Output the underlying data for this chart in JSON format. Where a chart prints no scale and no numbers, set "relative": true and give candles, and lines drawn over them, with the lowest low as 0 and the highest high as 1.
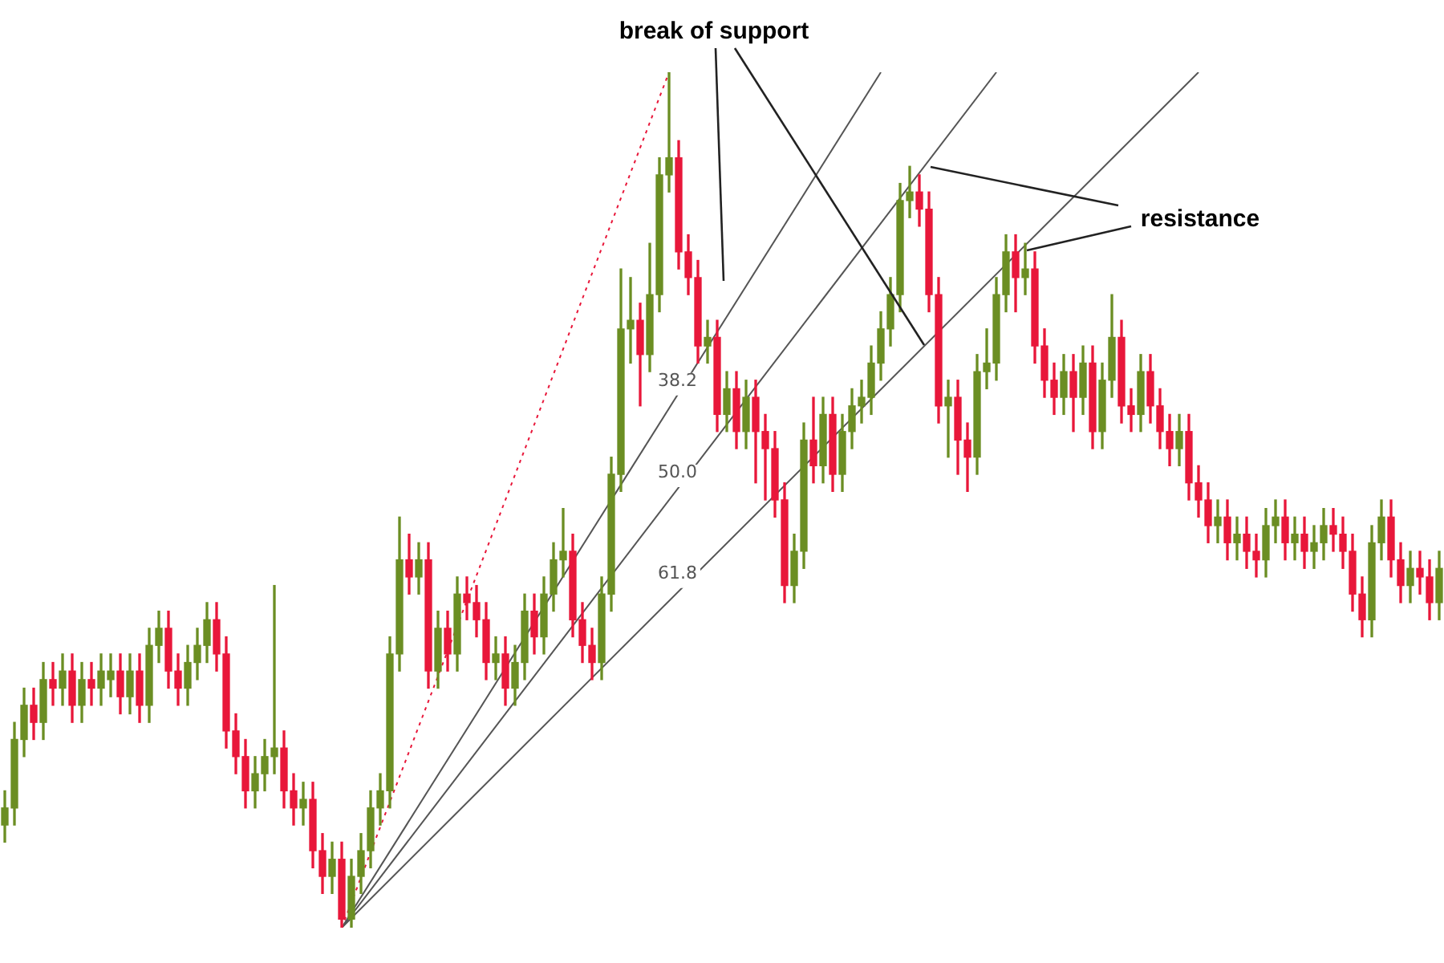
{
  "chart_data": {
    "type": "candlestick",
    "relative": true,
    "legend": false,
    "tick_labels": false,
    "annotations": [
      "break of support",
      "resistance"
    ],
    "categories": [
      null,
      null,
      null,
      null,
      null,
      null,
      null,
      null,
      null,
      null,
      null,
      null,
      null,
      null,
      null,
      null,
      null,
      null,
      null,
      null,
      null,
      null,
      null,
      null,
      null,
      null,
      null,
      null,
      null,
      null,
      null,
      null,
      null,
      null,
      null,
      null,
      null,
      null,
      null,
      null,
      null,
      null,
      null,
      null,
      null,
      null,
      null,
      null,
      null,
      null,
      null,
      null,
      null,
      null,
      null,
      null,
      null,
      null,
      null,
      null,
      null,
      null,
      null,
      null,
      null,
      null,
      null,
      null,
      null,
      null,
      null,
      null,
      null,
      null,
      null,
      null,
      null,
      null,
      null,
      null,
      null,
      null,
      null,
      null,
      null,
      null,
      null,
      null,
      null,
      null,
      null,
      null,
      null,
      null,
      null,
      null,
      null,
      null,
      null,
      null,
      null,
      null,
      null,
      null,
      null,
      null,
      null,
      null,
      null,
      null,
      null,
      null,
      null,
      null,
      null,
      null,
      null,
      null,
      null,
      null,
      null,
      null,
      null,
      null,
      null,
      null,
      null,
      null,
      null,
      null,
      null,
      null,
      null,
      null,
      null,
      null,
      null,
      null,
      null,
      null,
      null,
      null,
      null,
      null,
      null,
      null,
      null,
      null,
      null,
      null
    ],
    "ohlc": [
      [
        0.12,
        0.16,
        0.1,
        0.14
      ],
      [
        0.14,
        0.24,
        0.12,
        0.22
      ],
      [
        0.22,
        0.28,
        0.2,
        0.26
      ],
      [
        0.26,
        0.28,
        0.22,
        0.24
      ],
      [
        0.24,
        0.31,
        0.22,
        0.29
      ],
      [
        0.29,
        0.31,
        0.26,
        0.28
      ],
      [
        0.28,
        0.32,
        0.26,
        0.3
      ],
      [
        0.3,
        0.32,
        0.24,
        0.26
      ],
      [
        0.26,
        0.31,
        0.24,
        0.29
      ],
      [
        0.29,
        0.31,
        0.26,
        0.28
      ],
      [
        0.28,
        0.32,
        0.26,
        0.3
      ],
      [
        0.29,
        0.32,
        0.27,
        0.3
      ],
      [
        0.3,
        0.32,
        0.25,
        0.27
      ],
      [
        0.27,
        0.32,
        0.25,
        0.3
      ],
      [
        0.3,
        0.32,
        0.24,
        0.26
      ],
      [
        0.26,
        0.35,
        0.24,
        0.33
      ],
      [
        0.33,
        0.37,
        0.31,
        0.35
      ],
      [
        0.35,
        0.37,
        0.28,
        0.3
      ],
      [
        0.3,
        0.32,
        0.26,
        0.28
      ],
      [
        0.28,
        0.33,
        0.26,
        0.31
      ],
      [
        0.31,
        0.35,
        0.29,
        0.33
      ],
      [
        0.33,
        0.38,
        0.31,
        0.36
      ],
      [
        0.36,
        0.38,
        0.3,
        0.32
      ],
      [
        0.32,
        0.34,
        0.21,
        0.23
      ],
      [
        0.23,
        0.25,
        0.18,
        0.2
      ],
      [
        0.2,
        0.22,
        0.14,
        0.16
      ],
      [
        0.16,
        0.2,
        0.14,
        0.18
      ],
      [
        0.18,
        0.22,
        0.16,
        0.2
      ],
      [
        0.2,
        0.4,
        0.18,
        0.21
      ],
      [
        0.21,
        0.23,
        0.14,
        0.16
      ],
      [
        0.16,
        0.18,
        0.12,
        0.14
      ],
      [
        0.14,
        0.17,
        0.12,
        0.15
      ],
      [
        0.15,
        0.17,
        0.07,
        0.09
      ],
      [
        0.09,
        0.11,
        0.04,
        0.06
      ],
      [
        0.06,
        0.1,
        0.04,
        0.08
      ],
      [
        0.08,
        0.1,
        0.0,
        0.01
      ],
      [
        0.01,
        0.08,
        0.0,
        0.06
      ],
      [
        0.06,
        0.11,
        0.04,
        0.09
      ],
      [
        0.09,
        0.16,
        0.07,
        0.14
      ],
      [
        0.14,
        0.18,
        0.12,
        0.16
      ],
      [
        0.16,
        0.34,
        0.14,
        0.32
      ],
      [
        0.32,
        0.48,
        0.3,
        0.43
      ],
      [
        0.43,
        0.46,
        0.39,
        0.41
      ],
      [
        0.41,
        0.45,
        0.39,
        0.43
      ],
      [
        0.43,
        0.45,
        0.28,
        0.3
      ],
      [
        0.3,
        0.37,
        0.28,
        0.35
      ],
      [
        0.35,
        0.37,
        0.3,
        0.32
      ],
      [
        0.32,
        0.41,
        0.3,
        0.39
      ],
      [
        0.39,
        0.41,
        0.36,
        0.38
      ],
      [
        0.38,
        0.4,
        0.34,
        0.36
      ],
      [
        0.36,
        0.38,
        0.29,
        0.31
      ],
      [
        0.31,
        0.34,
        0.29,
        0.32
      ],
      [
        0.32,
        0.34,
        0.26,
        0.28
      ],
      [
        0.28,
        0.33,
        0.26,
        0.31
      ],
      [
        0.31,
        0.39,
        0.29,
        0.37
      ],
      [
        0.37,
        0.39,
        0.32,
        0.34
      ],
      [
        0.34,
        0.41,
        0.32,
        0.39
      ],
      [
        0.39,
        0.45,
        0.37,
        0.43
      ],
      [
        0.43,
        0.49,
        0.41,
        0.44
      ],
      [
        0.44,
        0.46,
        0.34,
        0.36
      ],
      [
        0.36,
        0.38,
        0.31,
        0.33
      ],
      [
        0.33,
        0.35,
        0.29,
        0.31
      ],
      [
        0.31,
        0.41,
        0.29,
        0.39
      ],
      [
        0.39,
        0.55,
        0.37,
        0.53
      ],
      [
        0.53,
        0.77,
        0.51,
        0.7
      ],
      [
        0.7,
        0.76,
        0.66,
        0.71
      ],
      [
        0.71,
        0.73,
        0.61,
        0.67
      ],
      [
        0.67,
        0.8,
        0.65,
        0.74
      ],
      [
        0.74,
        0.9,
        0.72,
        0.88
      ],
      [
        0.88,
        1.0,
        0.86,
        0.9
      ],
      [
        0.9,
        0.92,
        0.77,
        0.79
      ],
      [
        0.79,
        0.81,
        0.74,
        0.76
      ],
      [
        0.76,
        0.78,
        0.66,
        0.68
      ],
      [
        0.68,
        0.71,
        0.66,
        0.69
      ],
      [
        0.69,
        0.71,
        0.58,
        0.6
      ],
      [
        0.6,
        0.65,
        0.58,
        0.63
      ],
      [
        0.63,
        0.65,
        0.56,
        0.58
      ],
      [
        0.58,
        0.64,
        0.56,
        0.62
      ],
      [
        0.62,
        0.64,
        0.52,
        0.58
      ],
      [
        0.58,
        0.6,
        0.5,
        0.56
      ],
      [
        0.56,
        0.58,
        0.48,
        0.5
      ],
      [
        0.5,
        0.52,
        0.38,
        0.4
      ],
      [
        0.4,
        0.46,
        0.38,
        0.44
      ],
      [
        0.44,
        0.59,
        0.42,
        0.57
      ],
      [
        0.57,
        0.62,
        0.52,
        0.54
      ],
      [
        0.54,
        0.62,
        0.52,
        0.6
      ],
      [
        0.6,
        0.62,
        0.51,
        0.53
      ],
      [
        0.53,
        0.6,
        0.51,
        0.58
      ],
      [
        0.58,
        0.63,
        0.56,
        0.61
      ],
      [
        0.61,
        0.64,
        0.59,
        0.62
      ],
      [
        0.62,
        0.68,
        0.6,
        0.66
      ],
      [
        0.66,
        0.72,
        0.64,
        0.7
      ],
      [
        0.7,
        0.76,
        0.68,
        0.74
      ],
      [
        0.74,
        0.87,
        0.72,
        0.85
      ],
      [
        0.85,
        0.89,
        0.83,
        0.86
      ],
      [
        0.86,
        0.88,
        0.82,
        0.84
      ],
      [
        0.84,
        0.86,
        0.72,
        0.74
      ],
      [
        0.74,
        0.76,
        0.59,
        0.61
      ],
      [
        0.61,
        0.64,
        0.55,
        0.62
      ],
      [
        0.62,
        0.64,
        0.53,
        0.57
      ],
      [
        0.57,
        0.59,
        0.51,
        0.55
      ],
      [
        0.55,
        0.67,
        0.53,
        0.65
      ],
      [
        0.65,
        0.7,
        0.63,
        0.66
      ],
      [
        0.66,
        0.76,
        0.64,
        0.74
      ],
      [
        0.74,
        0.81,
        0.72,
        0.79
      ],
      [
        0.79,
        0.81,
        0.72,
        0.76
      ],
      [
        0.76,
        0.8,
        0.74,
        0.77
      ],
      [
        0.77,
        0.79,
        0.66,
        0.68
      ],
      [
        0.68,
        0.7,
        0.62,
        0.64
      ],
      [
        0.64,
        0.66,
        0.6,
        0.62
      ],
      [
        0.62,
        0.67,
        0.6,
        0.65
      ],
      [
        0.65,
        0.67,
        0.58,
        0.62
      ],
      [
        0.62,
        0.68,
        0.6,
        0.66
      ],
      [
        0.66,
        0.68,
        0.56,
        0.58
      ],
      [
        0.58,
        0.66,
        0.56,
        0.64
      ],
      [
        0.64,
        0.74,
        0.62,
        0.69
      ],
      [
        0.69,
        0.71,
        0.59,
        0.61
      ],
      [
        0.61,
        0.63,
        0.58,
        0.6
      ],
      [
        0.6,
        0.67,
        0.58,
        0.65
      ],
      [
        0.65,
        0.67,
        0.59,
        0.61
      ],
      [
        0.61,
        0.63,
        0.56,
        0.58
      ],
      [
        0.58,
        0.6,
        0.54,
        0.56
      ],
      [
        0.56,
        0.6,
        0.54,
        0.58
      ],
      [
        0.58,
        0.6,
        0.5,
        0.52
      ],
      [
        0.52,
        0.54,
        0.48,
        0.5
      ],
      [
        0.5,
        0.52,
        0.45,
        0.47
      ],
      [
        0.47,
        0.5,
        0.45,
        0.48
      ],
      [
        0.48,
        0.5,
        0.43,
        0.45
      ],
      [
        0.45,
        0.48,
        0.43,
        0.46
      ],
      [
        0.46,
        0.48,
        0.42,
        0.44
      ],
      [
        0.44,
        0.46,
        0.41,
        0.43
      ],
      [
        0.43,
        0.49,
        0.41,
        0.47
      ],
      [
        0.47,
        0.5,
        0.45,
        0.48
      ],
      [
        0.48,
        0.5,
        0.43,
        0.45
      ],
      [
        0.45,
        0.48,
        0.43,
        0.46
      ],
      [
        0.46,
        0.48,
        0.42,
        0.44
      ],
      [
        0.44,
        0.47,
        0.42,
        0.45
      ],
      [
        0.45,
        0.49,
        0.43,
        0.47
      ],
      [
        0.47,
        0.49,
        0.44,
        0.46
      ],
      [
        0.46,
        0.48,
        0.42,
        0.44
      ],
      [
        0.44,
        0.46,
        0.37,
        0.39
      ],
      [
        0.39,
        0.41,
        0.34,
        0.36
      ],
      [
        0.36,
        0.47,
        0.34,
        0.45
      ],
      [
        0.45,
        0.5,
        0.43,
        0.48
      ],
      [
        0.48,
        0.5,
        0.41,
        0.43
      ],
      [
        0.43,
        0.45,
        0.38,
        0.4
      ],
      [
        0.4,
        0.44,
        0.38,
        0.42
      ],
      [
        0.42,
        0.44,
        0.39,
        0.41
      ],
      [
        0.41,
        0.43,
        0.36,
        0.38
      ],
      [
        0.38,
        0.44,
        0.36,
        0.42
      ]
    ],
    "colors": [
      "#6b8e23",
      "#6b8e23",
      "#6b8e23",
      "#e8173a",
      "#6b8e23",
      "#e8173a",
      "#6b8e23",
      "#e8173a",
      "#6b8e23",
      "#e8173a",
      "#6b8e23",
      "#6b8e23",
      "#e8173a",
      "#6b8e23",
      "#e8173a",
      "#6b8e23",
      "#6b8e23",
      "#e8173a",
      "#e8173a",
      "#6b8e23",
      "#6b8e23",
      "#6b8e23",
      "#e8173a",
      "#e8173a",
      "#e8173a",
      "#e8173a",
      "#6b8e23",
      "#6b8e23",
      "#6b8e23",
      "#e8173a",
      "#e8173a",
      "#6b8e23",
      "#e8173a",
      "#e8173a",
      "#6b8e23",
      "#e8173a",
      "#6b8e23",
      "#6b8e23",
      "#6b8e23",
      "#6b8e23",
      "#6b8e23",
      "#6b8e23",
      "#e8173a",
      "#6b8e23",
      "#e8173a",
      "#6b8e23",
      "#e8173a",
      "#6b8e23",
      "#e8173a",
      "#e8173a",
      "#e8173a",
      "#6b8e23",
      "#e8173a",
      "#6b8e23",
      "#6b8e23",
      "#e8173a",
      "#6b8e23",
      "#6b8e23",
      "#6b8e23",
      "#e8173a",
      "#e8173a",
      "#e8173a",
      "#6b8e23",
      "#6b8e23",
      "#6b8e23",
      "#6b8e23",
      "#e8173a",
      "#6b8e23",
      "#6b8e23",
      "#6b8e23",
      "#e8173a",
      "#e8173a",
      "#e8173a",
      "#6b8e23",
      "#e8173a",
      "#6b8e23",
      "#e8173a",
      "#6b8e23",
      "#e8173a",
      "#e8173a",
      "#e8173a",
      "#e8173a",
      "#6b8e23",
      "#6b8e23",
      "#e8173a",
      "#6b8e23",
      "#e8173a",
      "#6b8e23",
      "#6b8e23",
      "#6b8e23",
      "#6b8e23",
      "#6b8e23",
      "#6b8e23",
      "#6b8e23",
      "#6b8e23",
      "#e8173a",
      "#e8173a",
      "#e8173a",
      "#6b8e23",
      "#e8173a",
      "#e8173a",
      "#6b8e23",
      "#6b8e23",
      "#6b8e23",
      "#6b8e23",
      "#e8173a",
      "#6b8e23",
      "#e8173a",
      "#e8173a",
      "#e8173a",
      "#6b8e23",
      "#e8173a",
      "#6b8e23",
      "#e8173a",
      "#6b8e23",
      "#6b8e23",
      "#e8173a",
      "#e8173a",
      "#6b8e23",
      "#e8173a",
      "#e8173a",
      "#e8173a",
      "#6b8e23",
      "#e8173a",
      "#e8173a",
      "#e8173a",
      "#6b8e23",
      "#e8173a",
      "#6b8e23",
      "#e8173a",
      "#e8173a",
      "#6b8e23",
      "#6b8e23",
      "#e8173a",
      "#6b8e23",
      "#e8173a",
      "#6b8e23",
      "#6b8e23",
      "#e8173a",
      "#e8173a",
      "#e8173a",
      "#e8173a",
      "#6b8e23",
      "#6b8e23",
      "#e8173a",
      "#e8173a",
      "#6b8e23",
      "#e8173a",
      "#e8173a",
      "#6b8e23"
    ],
    "series": [
      {
        "type": "line",
        "color": "#e8173a",
        "line_style": "dotted",
        "values": [
          null,
          null,
          null,
          null,
          null,
          null,
          null,
          null,
          null,
          null,
          null,
          null,
          null,
          null,
          null,
          null,
          null,
          null,
          null,
          null,
          null,
          null,
          null,
          null,
          null,
          null,
          null,
          null,
          null,
          null,
          null,
          null,
          null,
          null,
          null,
          0,
          null,
          null,
          null,
          null,
          null,
          null,
          null,
          null,
          null,
          null,
          null,
          null,
          null,
          null,
          null,
          null,
          null,
          null,
          null,
          null,
          null,
          null,
          null,
          null,
          null,
          null,
          null,
          null,
          null,
          null,
          null,
          null,
          null,
          1,
          null,
          null,
          null,
          null,
          null,
          null,
          null,
          null,
          null,
          null,
          null,
          null,
          null,
          null,
          null,
          null,
          null,
          null,
          null,
          null,
          null,
          null,
          null,
          null,
          null,
          null,
          null,
          null,
          null,
          null,
          null,
          null,
          null,
          null,
          null,
          null,
          null,
          null,
          null,
          null,
          null,
          null,
          null,
          null,
          null,
          null,
          null,
          null,
          null,
          null,
          null,
          null,
          null,
          null,
          null,
          null,
          null,
          null,
          null,
          null,
          null,
          null,
          null,
          null,
          null,
          null,
          null,
          null,
          null,
          null,
          null,
          null,
          null,
          null,
          null,
          null,
          null,
          null,
          null,
          null
        ]
      },
      {
        "type": "line",
        "name": "38.2",
        "color": "#555555",
        "line_style": "solid",
        "values": [
          null,
          null,
          null,
          null,
          null,
          null,
          null,
          null,
          null,
          null,
          null,
          null,
          null,
          null,
          null,
          null,
          null,
          null,
          null,
          null,
          null,
          null,
          null,
          null,
          null,
          null,
          null,
          null,
          null,
          null,
          null,
          null,
          null,
          null,
          null,
          0,
          null,
          null,
          null,
          null,
          null,
          null,
          null,
          null,
          null,
          null,
          null,
          null,
          null,
          null,
          null,
          null,
          null,
          null,
          null,
          null,
          null,
          null,
          null,
          null,
          null,
          null,
          null,
          null,
          null,
          null,
          null,
          null,
          null,
          null,
          null,
          null,
          null,
          null,
          null,
          null,
          null,
          null,
          null,
          null,
          null,
          null,
          null,
          null,
          null,
          null,
          null,
          null,
          null,
          null,
          null,
          1,
          null,
          null,
          null,
          null,
          null,
          null,
          null,
          null,
          null,
          null,
          null,
          null,
          null,
          null,
          null,
          null,
          null,
          null,
          null,
          null,
          null,
          null,
          null,
          null,
          null,
          null,
          null,
          null,
          null,
          null,
          null,
          null,
          null,
          null,
          null,
          null,
          null,
          null,
          null,
          null,
          null,
          null,
          null,
          null,
          null,
          null,
          null,
          null,
          null,
          null,
          null,
          null,
          null,
          null,
          null,
          null,
          null,
          null
        ]
      },
      {
        "type": "line",
        "name": "50.0",
        "color": "#555555",
        "line_style": "solid",
        "values": [
          null,
          null,
          null,
          null,
          null,
          null,
          null,
          null,
          null,
          null,
          null,
          null,
          null,
          null,
          null,
          null,
          null,
          null,
          null,
          null,
          null,
          null,
          null,
          null,
          null,
          null,
          null,
          null,
          null,
          null,
          null,
          null,
          null,
          null,
          null,
          0,
          null,
          null,
          null,
          null,
          null,
          null,
          null,
          null,
          null,
          null,
          null,
          null,
          null,
          null,
          null,
          null,
          null,
          null,
          null,
          null,
          null,
          null,
          null,
          null,
          null,
          null,
          null,
          null,
          null,
          null,
          null,
          null,
          null,
          null,
          null,
          null,
          null,
          null,
          null,
          null,
          null,
          null,
          null,
          null,
          null,
          null,
          null,
          null,
          null,
          null,
          null,
          null,
          null,
          null,
          null,
          null,
          null,
          null,
          null,
          null,
          null,
          null,
          null,
          null,
          null,
          null,
          null,
          1,
          null,
          null,
          null,
          null,
          null,
          null,
          null,
          null,
          null,
          null,
          null,
          null,
          null,
          null,
          null,
          null,
          null,
          null,
          null,
          null,
          null,
          null,
          null,
          null,
          null,
          null,
          null,
          null,
          null,
          null,
          null,
          null,
          null,
          null,
          null,
          null,
          null,
          null,
          null,
          null,
          null,
          null,
          null,
          null,
          null,
          null
        ]
      },
      {
        "type": "line",
        "name": "61.8",
        "color": "#555555",
        "line_style": "solid",
        "values": [
          null,
          null,
          null,
          null,
          null,
          null,
          null,
          null,
          null,
          null,
          null,
          null,
          null,
          null,
          null,
          null,
          null,
          null,
          null,
          null,
          null,
          null,
          null,
          null,
          null,
          null,
          null,
          null,
          null,
          null,
          null,
          null,
          null,
          null,
          null,
          0,
          null,
          null,
          null,
          null,
          null,
          null,
          null,
          null,
          null,
          null,
          null,
          null,
          null,
          null,
          null,
          null,
          null,
          null,
          null,
          null,
          null,
          null,
          null,
          null,
          null,
          null,
          null,
          null,
          null,
          null,
          null,
          null,
          null,
          null,
          null,
          null,
          null,
          null,
          null,
          null,
          null,
          null,
          null,
          null,
          null,
          null,
          null,
          null,
          null,
          null,
          null,
          null,
          null,
          null,
          null,
          null,
          null,
          null,
          null,
          null,
          null,
          null,
          null,
          null,
          null,
          null,
          null,
          null,
          null,
          null,
          null,
          null,
          null,
          null,
          null,
          null,
          null,
          null,
          null,
          null,
          null,
          null,
          null,
          null,
          null,
          null,
          null,
          null,
          1,
          null,
          null,
          null,
          null,
          null,
          null,
          null,
          null,
          null,
          null,
          null,
          null,
          null,
          null,
          null,
          null,
          null,
          null,
          null,
          null,
          null,
          null,
          null,
          null,
          null
        ]
      }
    ]
  }
}
